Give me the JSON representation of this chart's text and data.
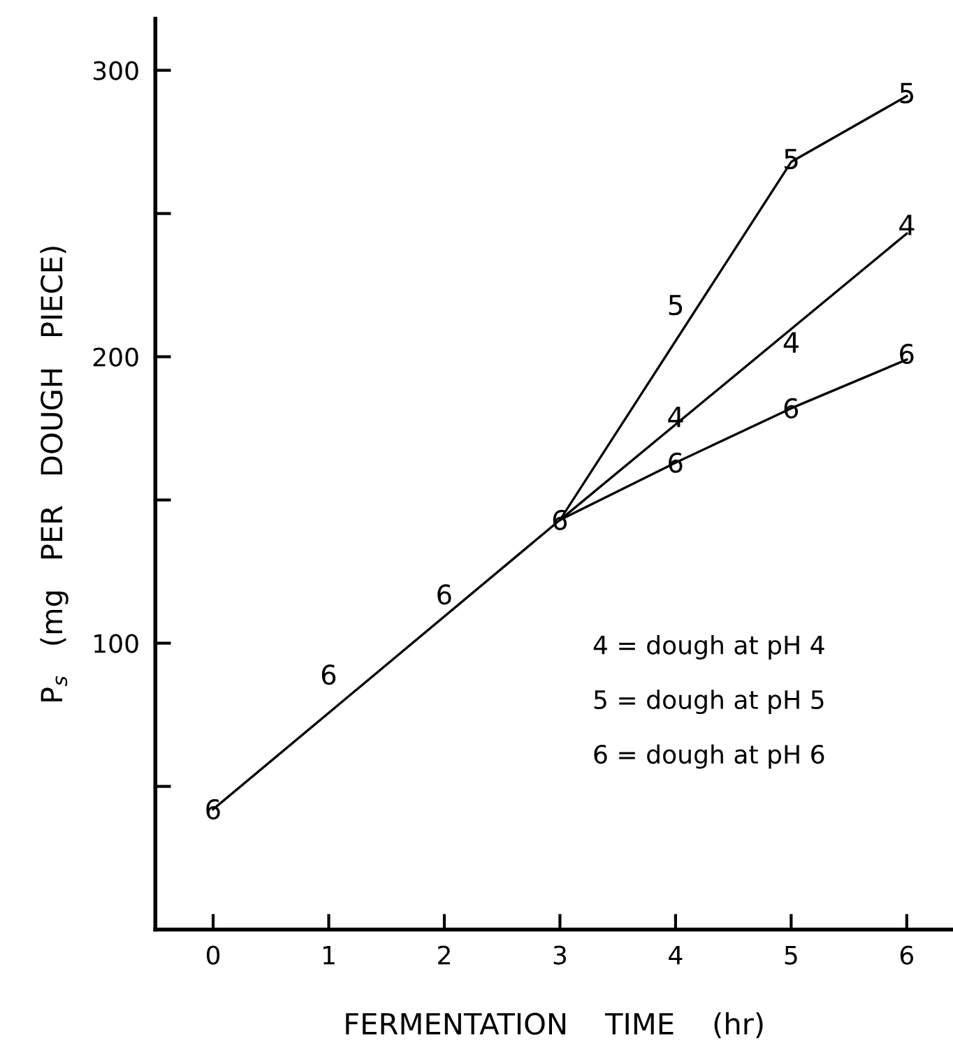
{
  "chart_data": {
    "type": "scatter",
    "xlabel": "FERMENTATION    TIME    (hr)",
    "ylabel": "P$_{s}$   (mg   PER   DOUGH   PIECE)",
    "xlim": [
      -0.5,
      6.4
    ],
    "ylim": [
      0,
      318
    ],
    "xticks": [
      0,
      1,
      2,
      3,
      4,
      5,
      6
    ],
    "yticks": [
      {
        "value": 50,
        "label": null
      },
      100,
      {
        "value": 150,
        "label": null
      },
      200,
      {
        "value": 250,
        "label": null
      },
      300
    ],
    "grid": false,
    "legend": false,
    "series": [
      {
        "name": "6",
        "color": "#000000",
        "x": [
          0,
          1,
          2,
          3,
          4,
          5,
          6
        ],
        "values": [
          42,
          89,
          117,
          143,
          163,
          182,
          201
        ]
      },
      {
        "name": "5",
        "color": "#000000",
        "x": [
          4,
          5,
          6
        ],
        "values": [
          218,
          269,
          292
        ]
      },
      {
        "name": "4",
        "color": "#000000",
        "x": [
          4,
          5,
          6
        ],
        "values": [
          179,
          205,
          246
        ]
      },
      {
        "type": "line",
        "color": "#000000",
        "x": [
          0,
          3,
          4,
          5,
          6
        ],
        "values": [
          42,
          143,
          163,
          182,
          199
        ]
      },
      {
        "type": "line",
        "color": "#000000",
        "x": [
          3,
          5,
          6
        ],
        "values": [
          143,
          268,
          291
        ]
      },
      {
        "type": "line",
        "color": "#000000",
        "x": [
          3,
          6
        ],
        "values": [
          143,
          243
        ]
      }
    ],
    "annotations": [
      "4 = dough at pH 4",
      "5 = dough at pH 5",
      "6 = dough at pH 6"
    ]
  }
}
